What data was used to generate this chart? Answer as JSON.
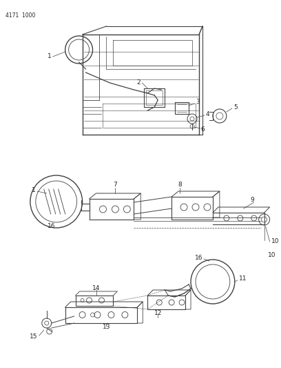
{
  "background_color": "#ffffff",
  "page_code": "4171  1000",
  "line_color": "#404040",
  "text_color": "#222222",
  "label_fontsize": 6.5,
  "page_code_fontsize": 5.5
}
